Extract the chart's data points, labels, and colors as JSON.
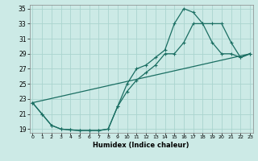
{
  "xlabel": "Humidex (Indice chaleur)",
  "bg_color": "#cceae6",
  "grid_color": "#aad4cf",
  "line_color": "#1a6e62",
  "xlim": [
    -0.3,
    23.3
  ],
  "ylim": [
    18.5,
    35.5
  ],
  "yticks": [
    19,
    21,
    23,
    25,
    27,
    29,
    31,
    33,
    35
  ],
  "xticks": [
    0,
    1,
    2,
    3,
    4,
    5,
    6,
    7,
    8,
    9,
    10,
    11,
    12,
    13,
    14,
    15,
    16,
    17,
    18,
    19,
    20,
    21,
    22,
    23
  ],
  "line1_x": [
    0,
    1,
    2,
    3,
    4,
    5,
    6,
    7,
    8,
    9,
    10,
    11,
    12,
    13,
    14,
    15,
    16,
    17,
    18,
    19,
    20,
    21,
    22,
    23
  ],
  "line1_y": [
    22.5,
    21.0,
    19.5,
    19.0,
    18.9,
    18.8,
    18.8,
    18.8,
    19.0,
    22.0,
    24.0,
    25.5,
    26.5,
    27.5,
    29.0,
    29.0,
    30.5,
    33.0,
    33.0,
    33.0,
    33.0,
    30.5,
    28.5,
    29.0
  ],
  "line2_x": [
    0,
    1,
    2,
    3,
    4,
    5,
    6,
    7,
    8,
    9,
    10,
    11,
    12,
    13,
    14,
    15,
    16,
    17,
    18,
    19,
    20,
    21,
    22,
    23
  ],
  "line2_y": [
    22.5,
    21.0,
    19.5,
    19.0,
    18.9,
    18.8,
    18.8,
    18.8,
    19.0,
    22.0,
    25.0,
    27.0,
    27.5,
    28.5,
    29.5,
    33.0,
    35.0,
    34.5,
    33.0,
    30.5,
    29.0,
    29.0,
    28.5,
    29.0
  ],
  "line3_x": [
    0,
    23
  ],
  "line3_y": [
    22.5,
    29.0
  ]
}
